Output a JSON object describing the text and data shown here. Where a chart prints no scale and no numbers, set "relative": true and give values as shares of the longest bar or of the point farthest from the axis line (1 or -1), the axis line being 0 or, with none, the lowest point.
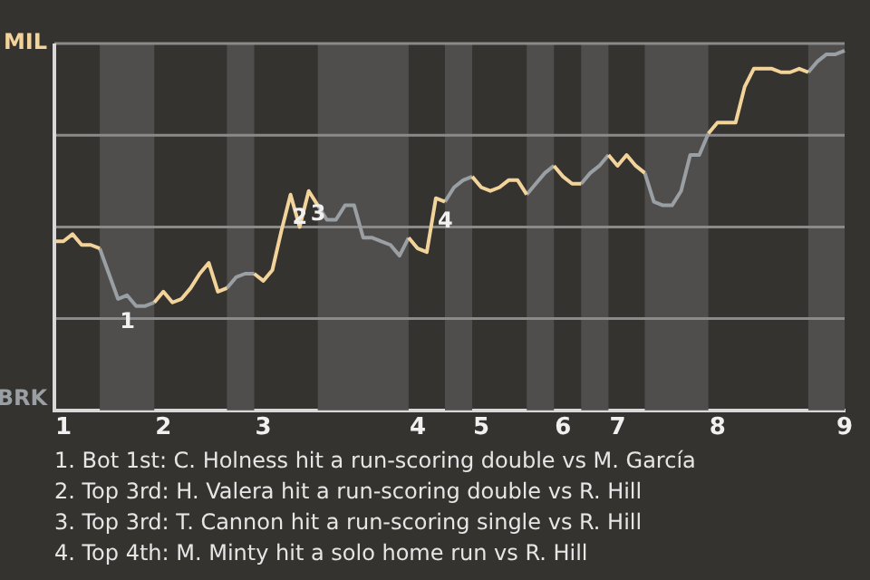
{
  "chart_data": {
    "type": "line",
    "relative": true,
    "categories": [
      null,
      "1",
      null,
      null,
      null,
      null,
      null,
      null,
      null,
      null,
      null,
      null,
      "2",
      null,
      null,
      null,
      null,
      null,
      null,
      null,
      null,
      null,
      null,
      "3",
      null,
      null,
      null,
      null,
      null,
      null,
      null,
      null,
      null,
      null,
      null,
      null,
      null,
      null,
      null,
      null,
      "4",
      null,
      null,
      null,
      null,
      null,
      null,
      "5",
      null,
      null,
      null,
      null,
      null,
      null,
      null,
      null,
      "6",
      null,
      null,
      null,
      null,
      null,
      "7",
      null,
      null,
      null,
      null,
      null,
      null,
      null,
      null,
      null,
      null,
      "8",
      null,
      null,
      null,
      null,
      null,
      null,
      null,
      null,
      null,
      null,
      null,
      null,
      null,
      "9"
    ],
    "series": [
      {
        "color": "#f2d49b",
        "values": [
          0.47,
          0.47,
          0.49,
          0.46,
          0.46,
          0.45,
          null,
          null,
          null,
          null,
          null,
          0.3,
          0.33,
          0.3,
          0.31,
          0.34,
          0.38,
          0.41,
          0.33,
          0.34,
          null,
          null,
          0.38,
          0.36,
          0.39,
          0.5,
          0.6,
          0.51,
          0.61,
          0.57,
          null,
          null,
          null,
          null,
          null,
          null,
          null,
          null,
          null,
          0.48,
          0.45,
          0.44,
          0.59,
          0.58,
          null,
          null,
          0.65,
          0.62,
          0.61,
          0.62,
          0.64,
          0.64,
          0.6,
          null,
          null,
          0.68,
          0.65,
          0.63,
          0.63,
          null,
          null,
          0.71,
          0.68,
          0.71,
          0.68,
          0.66,
          null,
          null,
          null,
          null,
          null,
          null,
          0.77,
          0.8,
          0.8,
          0.8,
          0.9,
          0.95,
          0.95,
          0.95,
          0.94,
          0.94,
          0.95,
          0.94,
          null,
          null,
          null,
          null
        ]
      },
      {
        "color": "#9a9fa3",
        "values": [
          null,
          null,
          null,
          null,
          null,
          0.45,
          0.38,
          0.31,
          0.32,
          0.29,
          0.29,
          0.3,
          null,
          null,
          null,
          null,
          null,
          null,
          null,
          0.34,
          0.37,
          0.38,
          0.38,
          null,
          null,
          null,
          null,
          null,
          null,
          0.57,
          0.53,
          0.53,
          0.57,
          0.57,
          0.48,
          0.48,
          0.47,
          0.46,
          0.43,
          0.48,
          null,
          null,
          null,
          0.58,
          0.62,
          0.64,
          0.65,
          null,
          null,
          null,
          null,
          null,
          0.6,
          0.63,
          0.66,
          0.68,
          null,
          null,
          0.63,
          0.66,
          0.68,
          0.71,
          null,
          null,
          null,
          0.66,
          0.58,
          0.57,
          0.57,
          0.61,
          0.71,
          0.71,
          0.77,
          null,
          null,
          null,
          null,
          null,
          null,
          null,
          null,
          null,
          null,
          0.94,
          0.97,
          0.99,
          0.99,
          1
        ]
      }
    ],
    "grid": "y",
    "legend": false,
    "marker": "none",
    "line_style": "solid",
    "annotations": [
      "MIL",
      "BRK",
      {
        "text": "1",
        "y": 0.31
      },
      {
        "text": "2",
        "y": 0.6
      },
      {
        "text": "3",
        "y": 0.61
      },
      {
        "text": "4",
        "y": 0.59
      },
      "1. Bot 1st: C. Holness hit a run-scoring double vs M. García",
      "2. Top 3rd: H. Valera hit a run-scoring double vs R. Hill",
      "3. Top 3rd: T. Cannon hit a run-scoring single vs R. Hill",
      "4. Top 4th: M. Minty hit a solo home run vs R. Hill"
    ]
  }
}
